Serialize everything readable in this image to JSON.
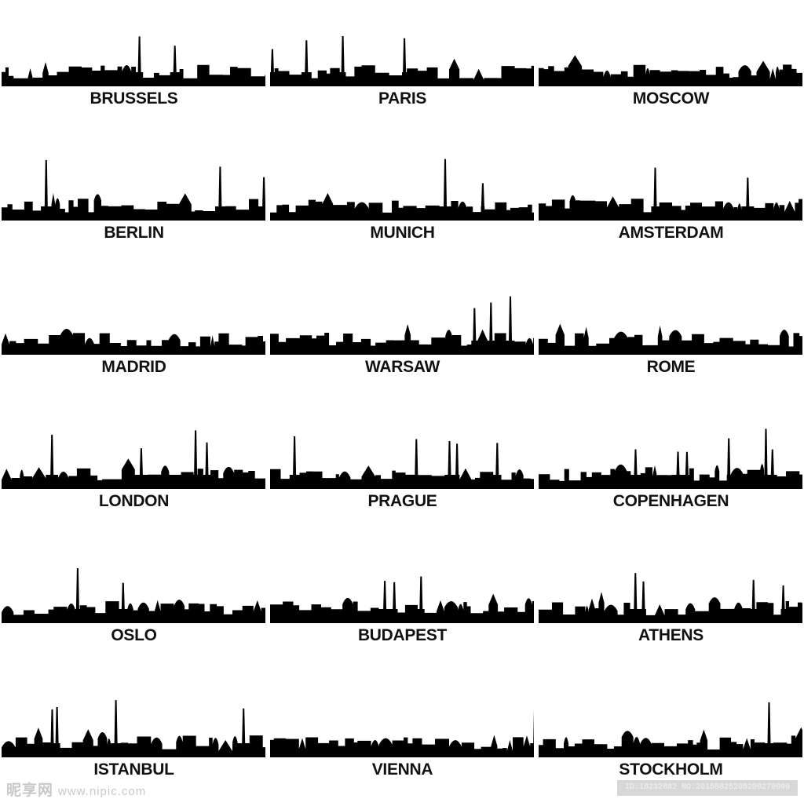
{
  "cities": [
    {
      "label": "BRUSSELS"
    },
    {
      "label": "PARIS"
    },
    {
      "label": "MOSCOW"
    },
    {
      "label": "BERLIN"
    },
    {
      "label": "MUNICH"
    },
    {
      "label": "AMSTERDAM"
    },
    {
      "label": "MADRID"
    },
    {
      "label": "WARSAW"
    },
    {
      "label": "ROME"
    },
    {
      "label": "LONDON"
    },
    {
      "label": "PRAGUE"
    },
    {
      "label": "COPENHAGEN"
    },
    {
      "label": "OSLO"
    },
    {
      "label": "BUDAPEST"
    },
    {
      "label": "ATHENS"
    },
    {
      "label": "ISTANBUL"
    },
    {
      "label": "VIENNA"
    },
    {
      "label": "STOCKHOLM"
    }
  ],
  "watermark": {
    "brand": "昵享网",
    "site": "www.nipic.com",
    "id_text": "ID:18232882 NO:20150825205200270000"
  },
  "colors": {
    "silhouette": "#000000",
    "label": "#111111",
    "background": "#ffffff"
  }
}
